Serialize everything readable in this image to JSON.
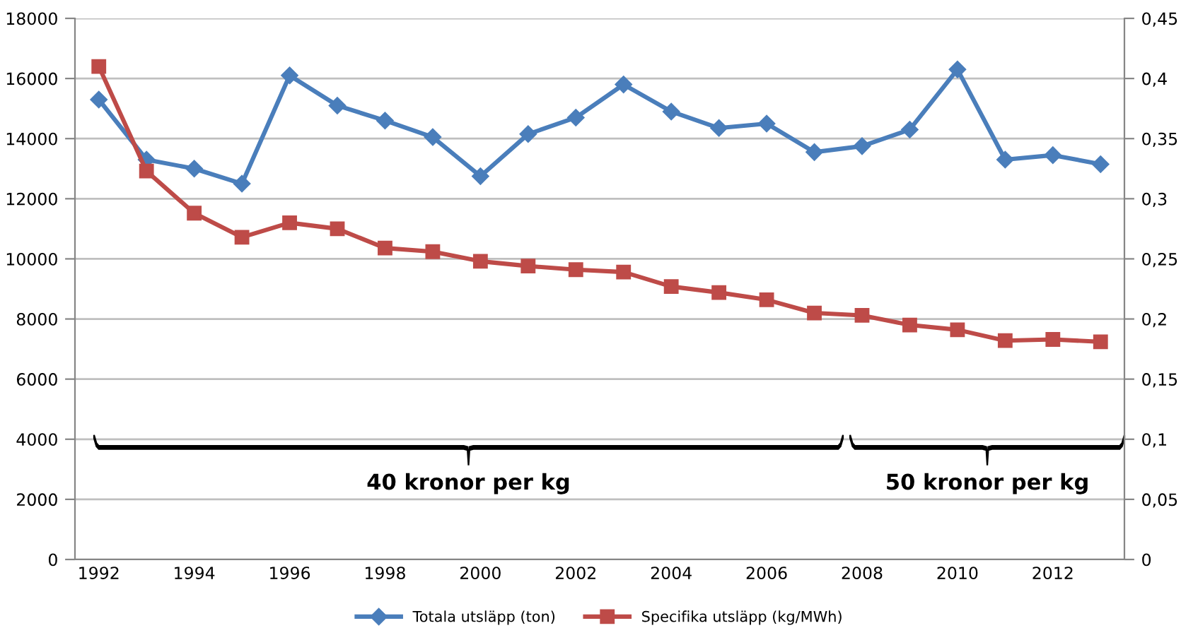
{
  "chart_data": {
    "type": "line",
    "categories": [
      "1992",
      null,
      "1994",
      null,
      "1996",
      null,
      "1998",
      null,
      "2000",
      null,
      "2002",
      null,
      "2004",
      null,
      "2006",
      null,
      "2008",
      null,
      "2010",
      null,
      "2012",
      null
    ],
    "series": [
      {
        "name": "Totala utsläpp (ton)",
        "color": "#4a7ebb",
        "marker": "diamond",
        "values": [
          15300,
          13300,
          13000,
          12500,
          16100,
          15100,
          14600,
          14050,
          12750,
          14150,
          14700,
          15800,
          14900,
          14350,
          14500,
          13550,
          13750,
          14300,
          16300,
          13300,
          13450,
          13150
        ]
      },
      {
        "name": "Specifika utsläpp (kg/MWh)",
        "color": "#be4b48",
        "marker": "square",
        "axis": "y2",
        "values": [
          0.41,
          0.323,
          0.288,
          0.268,
          0.28,
          0.275,
          0.259,
          0.256,
          0.248,
          0.244,
          0.241,
          0.239,
          0.227,
          0.222,
          0.216,
          0.205,
          0.203,
          0.195,
          0.191,
          0.182,
          0.183,
          0.181
        ]
      }
    ],
    "ylim": [
      0,
      18000
    ],
    "yticks": [
      0,
      2000,
      4000,
      6000,
      8000,
      10000,
      12000,
      14000,
      16000,
      18000
    ],
    "y2lim": [
      0,
      0.45
    ],
    "y2ticks": [
      0,
      {
        "value": 0.05,
        "label": "0,05"
      },
      {
        "value": 0.1,
        "label": "0,1"
      },
      {
        "value": 0.15,
        "label": "0,15"
      },
      {
        "value": 0.2,
        "label": "0,2"
      },
      {
        "value": 0.25,
        "label": "0,25"
      },
      {
        "value": 0.3,
        "label": "0,3"
      },
      {
        "value": 0.35,
        "label": "0,35"
      },
      {
        "value": 0.4,
        "label": "0,4"
      },
      {
        "value": 0.45,
        "label": "0,45"
      }
    ],
    "annotations": [
      "40 kronor per kg",
      "50 kronor per kg"
    ],
    "grid": "y",
    "legend": "bottom",
    "line_style": "solid"
  }
}
